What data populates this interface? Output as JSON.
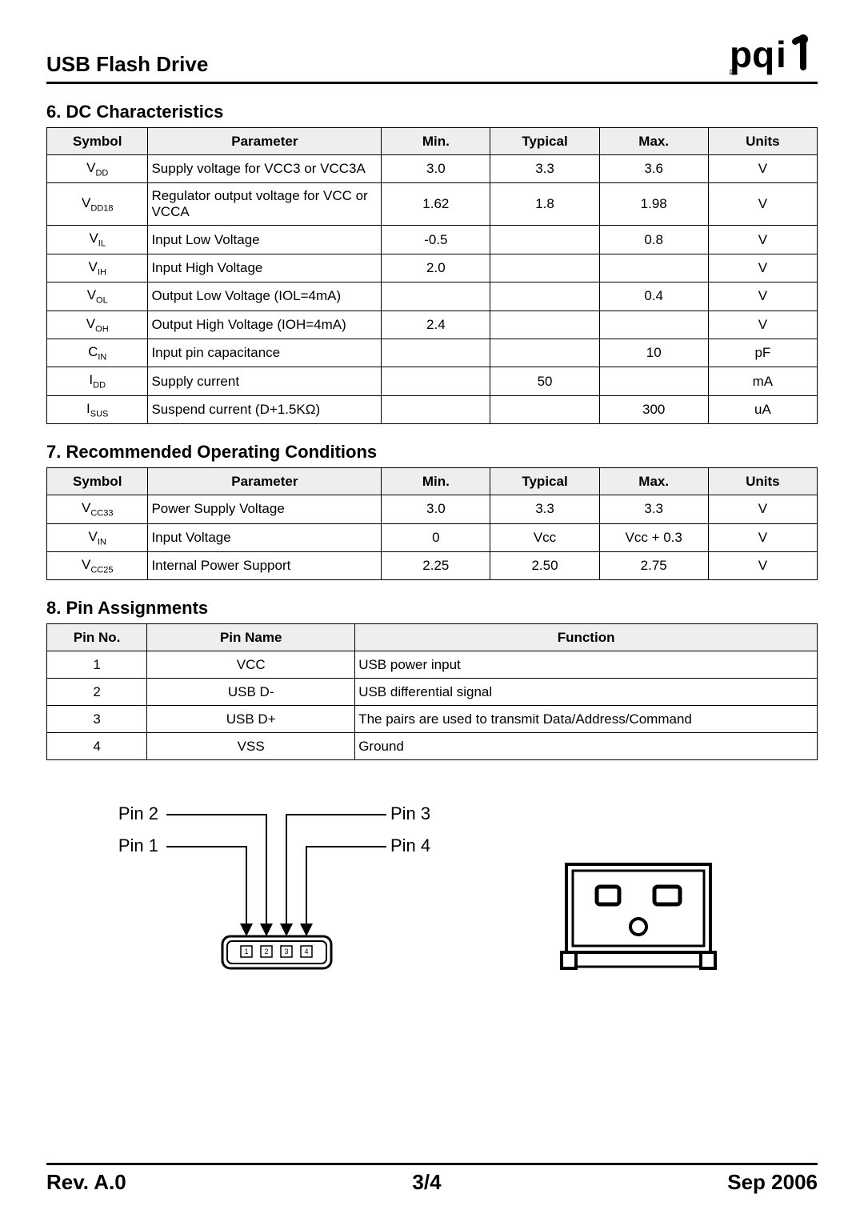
{
  "header": {
    "title": "USB Flash Drive",
    "logo_text": "pqi",
    "logo_color": "#000000"
  },
  "sections": {
    "dc": {
      "title": "6. DC Characteristics",
      "columns": [
        "Symbol",
        "Parameter",
        "Min.",
        "Typical",
        "Max.",
        "Units"
      ],
      "rows": [
        {
          "sym": "V",
          "sub": "DD",
          "param": "Supply voltage for VCC3 or VCC3A",
          "min": "3.0",
          "typ": "3.3",
          "max": "3.6",
          "units": "V"
        },
        {
          "sym": "V",
          "sub": "DD18",
          "param": "Regulator output voltage for VCC or VCCA",
          "min": "1.62",
          "typ": "1.8",
          "max": "1.98",
          "units": "V"
        },
        {
          "sym": "V",
          "sub": "IL",
          "param": "Input Low Voltage",
          "min": "-0.5",
          "typ": "",
          "max": "0.8",
          "units": "V"
        },
        {
          "sym": "V",
          "sub": "IH",
          "param": "Input High Voltage",
          "min": "2.0",
          "typ": "",
          "max": "",
          "units": "V"
        },
        {
          "sym": "V",
          "sub": "OL",
          "param": "Output Low Voltage (IOL=4mA)",
          "min": "",
          "typ": "",
          "max": "0.4",
          "units": "V"
        },
        {
          "sym": "V",
          "sub": "OH",
          "param": "Output High Voltage (IOH=4mA)",
          "min": "2.4",
          "typ": "",
          "max": "",
          "units": "V"
        },
        {
          "sym": "C",
          "sub": "IN",
          "param": "Input pin capacitance",
          "min": "",
          "typ": "",
          "max": "10",
          "units": "pF"
        },
        {
          "sym": "I",
          "sub": "DD",
          "param": "Supply current",
          "min": "",
          "typ": "50",
          "max": "",
          "units": "mA"
        },
        {
          "sym": "I",
          "sub": "SUS",
          "param": "Suspend current (D+1.5KΩ)",
          "min": "",
          "typ": "",
          "max": "300",
          "units": "uA"
        }
      ]
    },
    "rec": {
      "title": "7. Recommended Operating Conditions",
      "columns": [
        "Symbol",
        "Parameter",
        "Min.",
        "Typical",
        "Max.",
        "Units"
      ],
      "rows": [
        {
          "sym": "V",
          "sub": "CC33",
          "param": "Power Supply Voltage",
          "min": "3.0",
          "typ": "3.3",
          "max": "3.3",
          "units": "V"
        },
        {
          "sym": "V",
          "sub": "IN",
          "param": "Input Voltage",
          "min": "0",
          "typ": "Vcc",
          "max": "Vcc + 0.3",
          "units": "V"
        },
        {
          "sym": "V",
          "sub": "CC25",
          "param": "Internal Power Support",
          "min": "2.25",
          "typ": "2.50",
          "max": "2.75",
          "units": "V"
        }
      ]
    },
    "pins": {
      "title": "8. Pin Assignments",
      "columns": [
        "Pin No.",
        "Pin Name",
        "Function"
      ],
      "rows": [
        {
          "no": "1",
          "name": "VCC",
          "fn": "USB power input"
        },
        {
          "no": "2",
          "name": "USB D-",
          "fn": "USB differential signal"
        },
        {
          "no": "3",
          "name": "USB D+",
          "fn": "The pairs are used to transmit Data/Address/Command"
        },
        {
          "no": "4",
          "name": "VSS",
          "fn": "Ground"
        }
      ]
    }
  },
  "diagram": {
    "labels": {
      "pin1": "Pin 1",
      "pin2": "Pin 2",
      "pin3": "Pin 3",
      "pin4": "Pin 4"
    },
    "label_fontsize": 22,
    "stroke": "#000000",
    "fill_bg": "#ffffff",
    "pin_numbers": [
      "1",
      "2",
      "3",
      "4"
    ]
  },
  "footer": {
    "rev": "Rev. A.0",
    "page": "3/4",
    "date": "Sep 2006"
  },
  "colors": {
    "header_bg": "#eeeeee",
    "border": "#000000",
    "text": "#000000"
  }
}
